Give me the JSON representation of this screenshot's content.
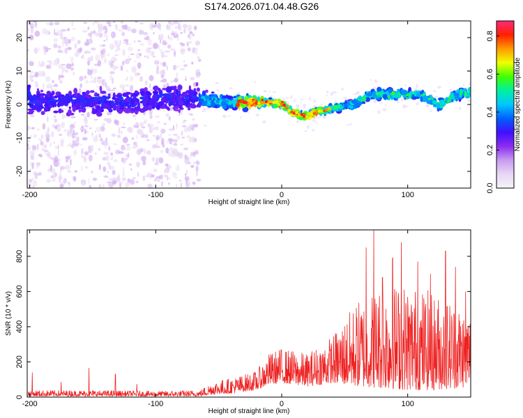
{
  "title": "S174.2026.071.04.48.G26",
  "chart_data": [
    {
      "type": "heatmap",
      "xlabel": "Height of straight line (km)",
      "ylabel": "Frequency (Hz)",
      "xlim": [
        -202,
        150
      ],
      "ylim": [
        -25,
        25
      ],
      "xticks": [
        -200,
        -100,
        0,
        100
      ],
      "yticks": [
        -20,
        -10,
        0,
        10,
        20
      ],
      "grid": false,
      "colorbar": {
        "label": "Normalized spectral amplitude",
        "range": [
          0,
          0.88
        ],
        "ticks": [
          0.0,
          0.2,
          0.4,
          0.6,
          0.8
        ],
        "colormap": [
          "#f4f4f4",
          "#e8d6f6",
          "#c89cf0",
          "#8b2cf0",
          "#4010ff",
          "#0060ff",
          "#00c8ff",
          "#00f0a0",
          "#40ff00",
          "#f0ff00",
          "#ff9a00",
          "#ff2000",
          "#ff2a7a"
        ]
      },
      "ridge": [
        {
          "x": -200,
          "y": 0.5
        },
        {
          "x": -180,
          "y": 0.8
        },
        {
          "x": -160,
          "y": 1.0
        },
        {
          "x": -140,
          "y": 0.6
        },
        {
          "x": -120,
          "y": 1.2
        },
        {
          "x": -100,
          "y": 1.5
        },
        {
          "x": -80,
          "y": 2.0
        },
        {
          "x": -60,
          "y": 1.5
        },
        {
          "x": -40,
          "y": 0.5
        },
        {
          "x": -20,
          "y": 0.6
        },
        {
          "x": -10,
          "y": 0.8
        },
        {
          "x": 0,
          "y": 0.0
        },
        {
          "x": 10,
          "y": -2.5
        },
        {
          "x": 20,
          "y": -3.5
        },
        {
          "x": 30,
          "y": -2.0
        },
        {
          "x": 45,
          "y": -1.0
        },
        {
          "x": 60,
          "y": 0.5
        },
        {
          "x": 70,
          "y": 3.0
        },
        {
          "x": 90,
          "y": 3.0
        },
        {
          "x": 110,
          "y": 3.0
        },
        {
          "x": 125,
          "y": 0.0
        },
        {
          "x": 140,
          "y": 3.0
        },
        {
          "x": 150,
          "y": 3.5
        }
      ],
      "noise_region_xmax": -65
    },
    {
      "type": "line",
      "xlabel": "Height of straight line (km)",
      "ylabel": "SNR (10 * v/v)",
      "xlim": [
        -202,
        150
      ],
      "ylim": [
        0,
        950
      ],
      "xticks": [
        -200,
        -100,
        0,
        100
      ],
      "yticks": [
        0,
        200,
        400,
        600,
        800
      ],
      "grid": false,
      "series": [
        {
          "color": "#ee2222",
          "envelope": [
            {
              "x": -202,
              "lo": 5,
              "hi": 40
            },
            {
              "x": -150,
              "lo": 5,
              "hi": 40
            },
            {
              "x": -100,
              "lo": 5,
              "hi": 35
            },
            {
              "x": -65,
              "lo": 5,
              "hi": 40
            },
            {
              "x": -55,
              "lo": 15,
              "hi": 90
            },
            {
              "x": -40,
              "lo": 20,
              "hi": 110
            },
            {
              "x": -20,
              "lo": 40,
              "hi": 150
            },
            {
              "x": -10,
              "lo": 70,
              "hi": 250
            },
            {
              "x": 0,
              "lo": 80,
              "hi": 280
            },
            {
              "x": 20,
              "lo": 60,
              "hi": 250
            },
            {
              "x": 40,
              "lo": 80,
              "hi": 350
            },
            {
              "x": 60,
              "lo": 60,
              "hi": 550
            },
            {
              "x": 80,
              "lo": 50,
              "hi": 650
            },
            {
              "x": 100,
              "lo": 40,
              "hi": 650
            },
            {
              "x": 120,
              "lo": 40,
              "hi": 600
            },
            {
              "x": 140,
              "lo": 50,
              "hi": 550
            },
            {
              "x": 150,
              "lo": 60,
              "hi": 500
            }
          ],
          "spikes": [
            {
              "x": -198,
              "y": 140
            },
            {
              "x": -175,
              "y": 85
            },
            {
              "x": -153,
              "y": 165
            },
            {
              "x": -132,
              "y": 130
            },
            {
              "x": -115,
              "y": 75
            },
            {
              "x": 67,
              "y": 850
            },
            {
              "x": 73,
              "y": 950
            },
            {
              "x": 80,
              "y": 680
            },
            {
              "x": 88,
              "y": 790
            },
            {
              "x": 95,
              "y": 880
            },
            {
              "x": 108,
              "y": 770
            },
            {
              "x": 118,
              "y": 700
            },
            {
              "x": 130,
              "y": 830
            },
            {
              "x": 138,
              "y": 740
            },
            {
              "x": 146,
              "y": 600
            }
          ]
        }
      ]
    }
  ]
}
